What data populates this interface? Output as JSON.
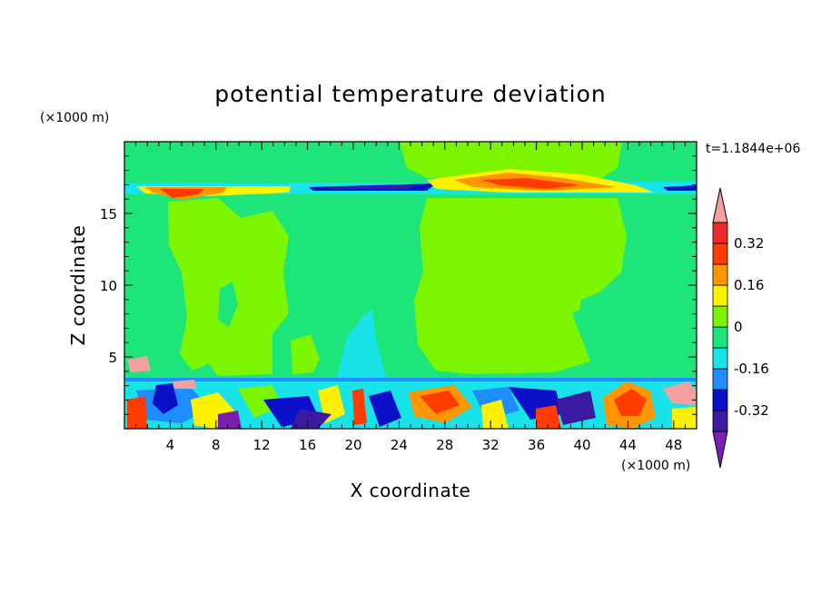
{
  "chart_data": {
    "type": "heatmap",
    "title": "potential temperature deviation",
    "xlabel": "X coordinate",
    "ylabel": "Z coordinate",
    "x_unit": "(×1000 m)",
    "y_unit": "(×1000 m)",
    "time_label": "t=1.1844e+06",
    "xlim": [
      0,
      50
    ],
    "ylim": [
      0,
      20
    ],
    "x_ticks": [
      4,
      8,
      12,
      16,
      20,
      24,
      28,
      32,
      36,
      40,
      44,
      48
    ],
    "y_ticks": [
      5,
      10,
      15
    ],
    "colorbar": {
      "levels": [
        -0.4,
        -0.32,
        -0.24,
        -0.16,
        -0.08,
        0,
        0.08,
        0.16,
        0.24,
        0.32,
        0.4
      ],
      "labels": [
        "0.32",
        "0.16",
        "0",
        "-0.16",
        "-0.32"
      ],
      "label_values": [
        0.32,
        0.16,
        0,
        -0.16,
        -0.32
      ],
      "colors": [
        "#7a1fb0",
        "#3a1aa0",
        "#0a10c8",
        "#1f8cff",
        "#18e3e8",
        "#1ee57a",
        "#7cf500",
        "#fff200",
        "#ff9600",
        "#ff3c00",
        "#ee2a2a",
        "#f5a0a0"
      ]
    },
    "regions": [
      {
        "name": "background",
        "value": -0.04
      },
      {
        "name": "upper-left-plume",
        "value": 0.04
      },
      {
        "name": "upper-right-plume",
        "value": 0.04
      },
      {
        "name": "tropopause-warm-band",
        "value": 0.28
      },
      {
        "name": "tropopause-cold-band",
        "value": -0.36
      },
      {
        "name": "cold-tongue",
        "value": -0.1
      },
      {
        "name": "boundary-layer-turbulence",
        "value": -0.2
      }
    ]
  }
}
